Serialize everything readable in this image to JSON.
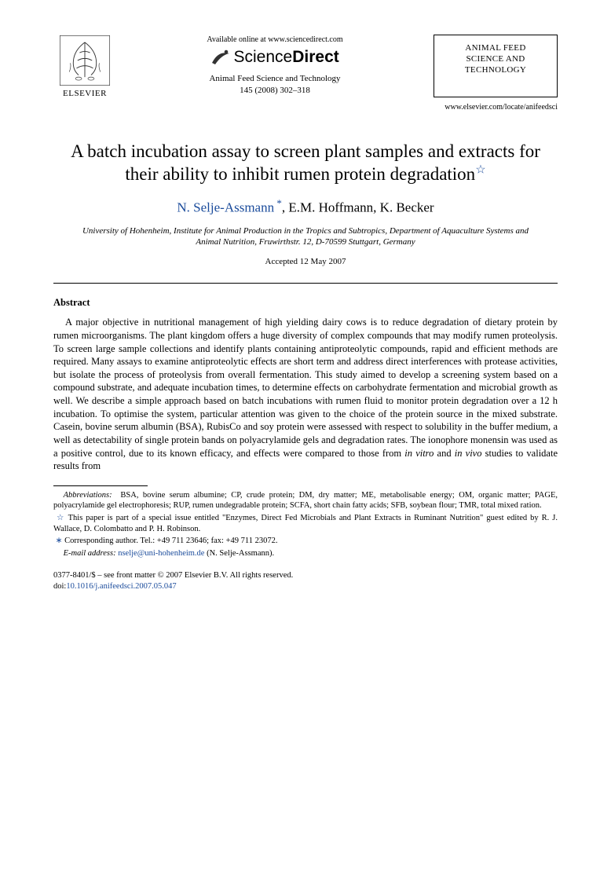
{
  "header": {
    "elsevier": "ELSEVIER",
    "available_online": "Available online at www.sciencedirect.com",
    "sd_name_light": "Science",
    "sd_name_bold": "Direct",
    "journal_name": "Animal Feed Science and Technology",
    "journal_cite": "145 (2008) 302–318",
    "right_box_line1": "ANIMAL FEED",
    "right_box_line2": "SCIENCE AND",
    "right_box_line3": "TECHNOLOGY",
    "locate_url": "www.elsevier.com/locate/anifeedsci"
  },
  "title": "A batch incubation assay to screen plant samples and extracts for their ability to inhibit rumen protein degradation",
  "authors": {
    "a1": "N. Selje-Assmann",
    "a2": "E.M. Hoffmann",
    "a3": "K. Becker"
  },
  "affiliation": "University of Hohenheim, Institute for Animal Production in the Tropics and Subtropics, Department of Aquaculture Systems and Animal Nutrition, Fruwirthstr. 12, D-70599 Stuttgart, Germany",
  "accepted": "Accepted 12 May 2007",
  "abstract_heading": "Abstract",
  "abstract_body": "A major objective in nutritional management of high yielding dairy cows is to reduce degradation of dietary protein by rumen microorganisms. The plant kingdom offers a huge diversity of complex compounds that may modify rumen proteolysis. To screen large sample collections and identify plants containing antiproteolytic compounds, rapid and efficient methods are required. Many assays to examine antiproteolytic effects are short term and address direct interferences with protease activities, but isolate the process of proteolysis from overall fermentation. This study aimed to develop a screening system based on a compound substrate, and adequate incubation times, to determine effects on carbohydrate fermentation and microbial growth as well. We describe a simple approach based on batch incubations with rumen fluid to monitor protein degradation over a 12 h incubation. To optimise the system, particular attention was given to the choice of the protein source in the mixed substrate. Casein, bovine serum albumin (BSA), RubisCo and soy protein were assessed with respect to solubility in the buffer medium, a well as detectability of single protein bands on polyacrylamide gels and degradation rates. The ionophore monensin was used as a positive control, due to its known efficacy, and effects were compared to those from in vitro and in vivo studies to validate results from",
  "footnotes": {
    "abbrev_label": "Abbreviations:",
    "abbrev_text": "BSA, bovine serum albumine; CP, crude protein; DM, dry matter; ME, metabolisable energy; OM, organic matter; PAGE, polyacrylamide gel electrophoresis; RUP, rumen undegradable protein; SCFA, short chain fatty acids; SFB, soybean flour; TMR, total mixed ration.",
    "paper_note": "This paper is part of a special issue entitled \"Enzymes, Direct Fed Microbials and Plant Extracts in Ruminant Nutrition\" guest edited by R. J. Wallace, D. Colombatto and P. H. Robinson.",
    "corr_label": "Corresponding author. Tel.: +49 711 23646; fax: +49 711 23072.",
    "email_label": "E-mail address:",
    "email": "nselje@uni-hohenheim.de",
    "email_tail": "(N. Selje-Assmann)."
  },
  "footer": {
    "copyright": "0377-8401/$ – see front matter © 2007 Elsevier B.V. All rights reserved.",
    "doi_label": "doi:",
    "doi": "10.1016/j.anifeedsci.2007.05.047"
  },
  "colors": {
    "link": "#1a4b9b",
    "text": "#000000",
    "bg": "#ffffff"
  }
}
